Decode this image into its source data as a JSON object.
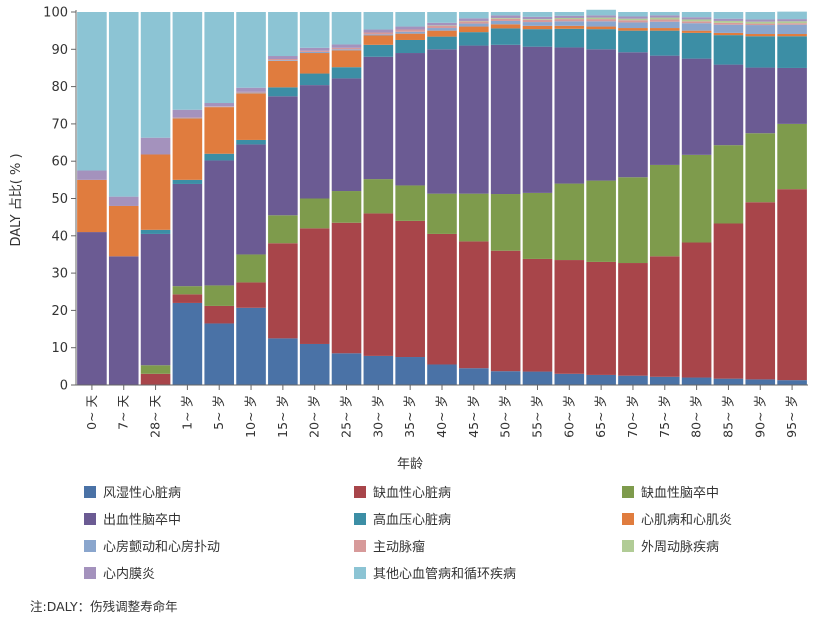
{
  "chart_data": {
    "type": "bar",
    "stacked": true,
    "title": "",
    "xlabel": "年龄",
    "ylabel": "DALY 占比( % )",
    "ylim": [
      0,
      100
    ],
    "yticks": [
      0,
      10,
      20,
      30,
      40,
      50,
      60,
      70,
      80,
      90,
      100
    ],
    "categories": [
      "0~ 天",
      "7~ 天",
      "28~ 天",
      "1~ 岁",
      "5~ 岁",
      "10~ 岁",
      "15~ 岁",
      "20~ 岁",
      "25~ 岁",
      "30~ 岁",
      "35~ 岁",
      "40~ 岁",
      "45~ 岁",
      "50~ 岁",
      "55~ 岁",
      "60~ 岁",
      "65~ 岁",
      "70~ 岁",
      "75~ 岁",
      "80~ 岁",
      "85~ 岁",
      "90~ 岁",
      "95~ 岁"
    ],
    "series": [
      {
        "name": "风湿性心脏病",
        "color": "#4a72a6",
        "values": [
          0,
          0,
          0,
          22,
          16.5,
          20.7,
          12.5,
          11,
          8.5,
          7.8,
          7.5,
          5.5,
          4.5,
          3.7,
          3.6,
          3,
          2.7,
          2.5,
          2.2,
          2,
          1.7,
          1.5,
          1.3
        ]
      },
      {
        "name": "缺血性心脏病",
        "color": "#a8454a",
        "values": [
          0,
          0,
          3,
          2.3,
          4.7,
          6.8,
          25.5,
          31,
          35,
          38.2,
          36.5,
          35,
          34,
          32.3,
          30.2,
          30.5,
          30.3,
          30.2,
          32.3,
          36.2,
          41.6,
          47.5,
          51.2
        ]
      },
      {
        "name": "缺血性脑卒中",
        "color": "#7e9b4c",
        "values": [
          0,
          0,
          2.3,
          2.2,
          5.5,
          7.5,
          7.5,
          8,
          8.5,
          9.2,
          9.5,
          10.8,
          12.8,
          15.2,
          17.7,
          20.5,
          21.8,
          23,
          24.5,
          23.5,
          21,
          18.5,
          17.5
        ]
      },
      {
        "name": "出血性脑卒中",
        "color": "#6b5b93",
        "values": [
          41,
          34.5,
          35.2,
          27.4,
          33.5,
          29.5,
          31.9,
          30.4,
          30.2,
          32.8,
          35.5,
          38.7,
          39.7,
          40,
          39.2,
          36.5,
          35.2,
          33.5,
          29.3,
          25.8,
          21.6,
          17.6,
          15
        ]
      },
      {
        "name": "高血压心脏病",
        "color": "#3c8ea5",
        "values": [
          0,
          0,
          1.1,
          1.1,
          1.8,
          1.2,
          2.4,
          3.1,
          3,
          3.2,
          3.5,
          3.4,
          3.6,
          4.4,
          4.7,
          5,
          5.4,
          5.8,
          6.7,
          6.9,
          7.9,
          8.4,
          8.5
        ]
      },
      {
        "name": "心肌病和心肌炎",
        "color": "#e07c3e",
        "values": [
          14,
          13.5,
          20.2,
          16.5,
          12.5,
          12.5,
          7.1,
          5.5,
          4.5,
          2.5,
          1.7,
          1.6,
          1.5,
          1.1,
          0.9,
          0.8,
          0.7,
          0.7,
          0.7,
          0.6,
          0.6,
          0.6,
          0.6
        ]
      },
      {
        "name": "心房颤动和心房扑动",
        "color": "#8aa6cd",
        "values": [
          0,
          0,
          0,
          0.1,
          0.1,
          0.2,
          0.2,
          0.3,
          0.3,
          0.3,
          0.5,
          0.7,
          0.8,
          0.9,
          1,
          1.2,
          1.4,
          1.5,
          1.7,
          2,
          2.2,
          2.4,
          2.5
        ]
      },
      {
        "name": "主动脉瘤",
        "color": "#d79a9a",
        "values": [
          0,
          0,
          0,
          0.1,
          0.1,
          0.2,
          0.3,
          0.3,
          0.4,
          0.5,
          0.6,
          0.6,
          0.6,
          0.6,
          0.6,
          0.6,
          0.6,
          0.6,
          0.6,
          0.5,
          0.5,
          0.4,
          0.4
        ]
      },
      {
        "name": "外周动脉疾病",
        "color": "#b1cc96",
        "values": [
          0,
          0,
          0,
          0,
          0,
          0,
          0,
          0,
          0,
          0,
          0,
          0.1,
          0.1,
          0.2,
          0.2,
          0.3,
          0.4,
          0.4,
          0.5,
          0.5,
          0.5,
          0.5,
          0.5
        ]
      },
      {
        "name": "心内膜炎",
        "color": "#a492bd",
        "values": [
          2.5,
          2.5,
          4.5,
          2.1,
          0.9,
          1.1,
          0.8,
          0.8,
          0.9,
          0.8,
          0.8,
          0.7,
          0.7,
          0.7,
          0.6,
          0.6,
          0.6,
          0.6,
          0.6,
          0.6,
          0.6,
          0.6,
          0.6
        ]
      },
      {
        "name": "其他心血管病和循环疾病",
        "color": "#8cc4d4",
        "values": [
          42.5,
          49.5,
          33.7,
          26.2,
          24.4,
          20.3,
          11.8,
          9.6,
          8.7,
          4.7,
          3.9,
          2.9,
          1.7,
          0.9,
          1.3,
          1,
          1.5,
          1.2,
          0.9,
          1.4,
          1.8,
          2,
          2
        ]
      }
    ]
  },
  "note": "注:DALY：伤残调整寿命年"
}
